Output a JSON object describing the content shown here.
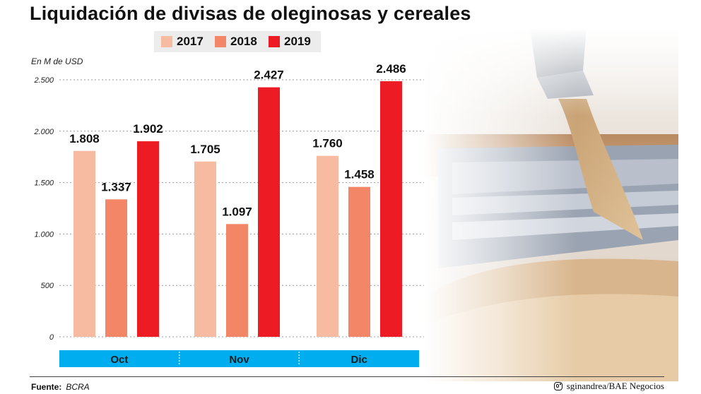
{
  "title": "Liquidación de divisas de oleginosas y cereales",
  "unit_label": "En M de USD",
  "footer": {
    "source_label": "Fuente:",
    "source_value": "BCRA",
    "credit": "sginandrea/BAE Negocios",
    "credit_icon": "instagram-icon"
  },
  "colors": {
    "2017": "#f7bba1",
    "2018": "#f28667",
    "2019": "#ed1c24",
    "band": "#00aeef",
    "band_text": "#1b1b1b"
  },
  "photo": {
    "description_icon": "grain-harvest-photo"
  },
  "chart_data": {
    "type": "bar",
    "categories": [
      "Oct",
      "Nov",
      "Dic"
    ],
    "series": [
      {
        "name": "2017",
        "values": [
          1808,
          1705,
          1760
        ],
        "labels": [
          "1.808",
          "1.705",
          "1.760"
        ]
      },
      {
        "name": "2018",
        "values": [
          1337,
          1097,
          1458
        ],
        "labels": [
          "1.337",
          "1.097",
          "1.458"
        ]
      },
      {
        "name": "2019",
        "values": [
          1902,
          2427,
          2486
        ],
        "labels": [
          "1.902",
          "2.427",
          "2.486"
        ]
      }
    ],
    "yticks": [
      0,
      500,
      1000,
      1500,
      2000,
      2500
    ],
    "ytick_labels": [
      "0",
      "500",
      "1.000",
      "1.500",
      "2.000",
      "2.500"
    ],
    "ylim": [
      0,
      2500
    ],
    "grid": true,
    "legend_position": "top",
    "ylabel": "En M de USD"
  }
}
